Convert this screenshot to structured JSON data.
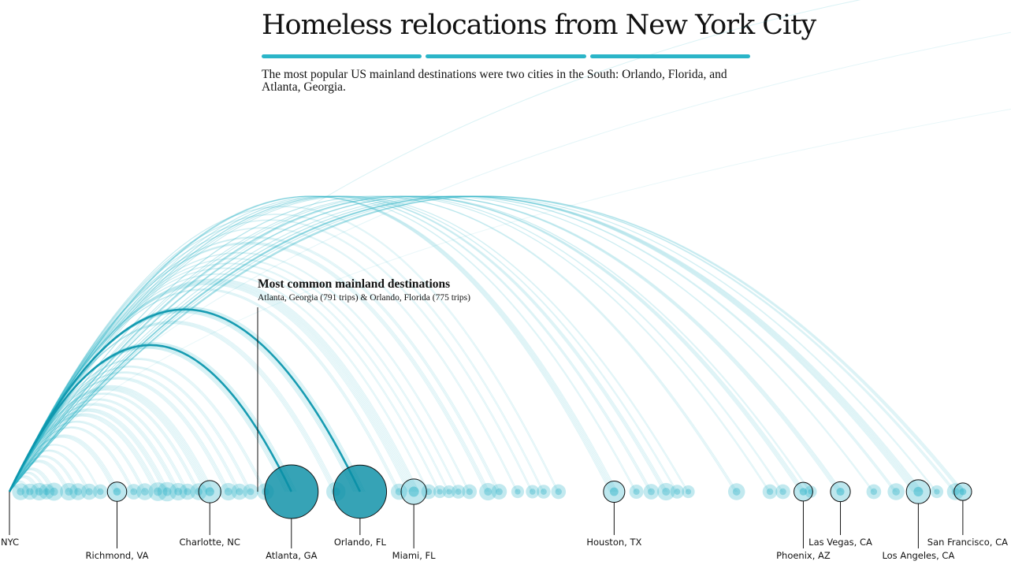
{
  "header": {
    "title": "Homeless relocations from New York City",
    "subtitle": "The most popular US mainland destinations were two cities in the South: Orlando, Florida, and Atlanta, Georgia."
  },
  "annotation": {
    "title": "Most common mainland destinations",
    "detail": "Atlanta, Georgia (791 trips) & Orlando, Florida (775 trips)"
  },
  "colors": {
    "accent": "#2bb5c8",
    "arc_strong": "#0e97ae",
    "bubble": "#24b0c6",
    "bubble_dark": "#0a8fa6",
    "ink": "#121212"
  },
  "chart_data": {
    "type": "arc",
    "origin": "NYC",
    "x_axis": "distance from NYC (miles), not printed",
    "xlim": [
      0,
      2600
    ],
    "labeled_destinations": [
      {
        "name": "NYC",
        "distance": 0,
        "trips": null
      },
      {
        "name": "Richmond, VA",
        "distance": 290,
        "trips": 60
      },
      {
        "name": "Charlotte, NC",
        "distance": 540,
        "trips": 90
      },
      {
        "name": "Atlanta, GA",
        "distance": 760,
        "trips": 791
      },
      {
        "name": "Orlando, FL",
        "distance": 945,
        "trips": 775
      },
      {
        "name": "Miami, FL",
        "distance": 1090,
        "trips": 130
      },
      {
        "name": "Houston, TX",
        "distance": 1630,
        "trips": 80
      },
      {
        "name": "Phoenix, AZ",
        "distance": 2140,
        "trips": 55
      },
      {
        "name": "Las Vegas, CA",
        "distance": 2240,
        "trips": 65
      },
      {
        "name": "Los Angeles, CA",
        "distance": 2450,
        "trips": 110
      },
      {
        "name": "San Francisco, CA",
        "distance": 2570,
        "trips": 45
      }
    ],
    "other_destinations": [
      {
        "distance": 30,
        "trips": 40
      },
      {
        "distance": 55,
        "trips": 35
      },
      {
        "distance": 80,
        "trips": 45
      },
      {
        "distance": 100,
        "trips": 30
      },
      {
        "distance": 120,
        "trips": 50
      },
      {
        "distance": 160,
        "trips": 45
      },
      {
        "distance": 185,
        "trips": 40
      },
      {
        "distance": 215,
        "trips": 35
      },
      {
        "distance": 245,
        "trips": 25
      },
      {
        "distance": 335,
        "trips": 30
      },
      {
        "distance": 365,
        "trips": 40
      },
      {
        "distance": 400,
        "trips": 55
      },
      {
        "distance": 425,
        "trips": 60
      },
      {
        "distance": 455,
        "trips": 45
      },
      {
        "distance": 480,
        "trips": 35
      },
      {
        "distance": 510,
        "trips": 40
      },
      {
        "distance": 590,
        "trips": 45
      },
      {
        "distance": 620,
        "trips": 35
      },
      {
        "distance": 650,
        "trips": 30
      },
      {
        "distance": 690,
        "trips": 40
      },
      {
        "distance": 880,
        "trips": 60
      },
      {
        "distance": 1050,
        "trips": 35
      },
      {
        "distance": 1130,
        "trips": 25
      },
      {
        "distance": 1160,
        "trips": 15
      },
      {
        "distance": 1185,
        "trips": 15
      },
      {
        "distance": 1210,
        "trips": 20
      },
      {
        "distance": 1240,
        "trips": 25
      },
      {
        "distance": 1290,
        "trips": 45
      },
      {
        "distance": 1320,
        "trips": 30
      },
      {
        "distance": 1370,
        "trips": 15
      },
      {
        "distance": 1410,
        "trips": 18
      },
      {
        "distance": 1440,
        "trips": 20
      },
      {
        "distance": 1480,
        "trips": 25
      },
      {
        "distance": 1690,
        "trips": 22
      },
      {
        "distance": 1730,
        "trips": 30
      },
      {
        "distance": 1770,
        "trips": 45
      },
      {
        "distance": 1800,
        "trips": 20
      },
      {
        "distance": 1830,
        "trips": 15
      },
      {
        "distance": 1960,
        "trips": 40
      },
      {
        "distance": 2050,
        "trips": 25
      },
      {
        "distance": 2085,
        "trips": 25
      },
      {
        "distance": 2160,
        "trips": 12
      },
      {
        "distance": 2330,
        "trips": 25
      },
      {
        "distance": 2390,
        "trips": 40
      },
      {
        "distance": 2500,
        "trips": 15
      },
      {
        "distance": 2550,
        "trips": 40
      }
    ]
  }
}
